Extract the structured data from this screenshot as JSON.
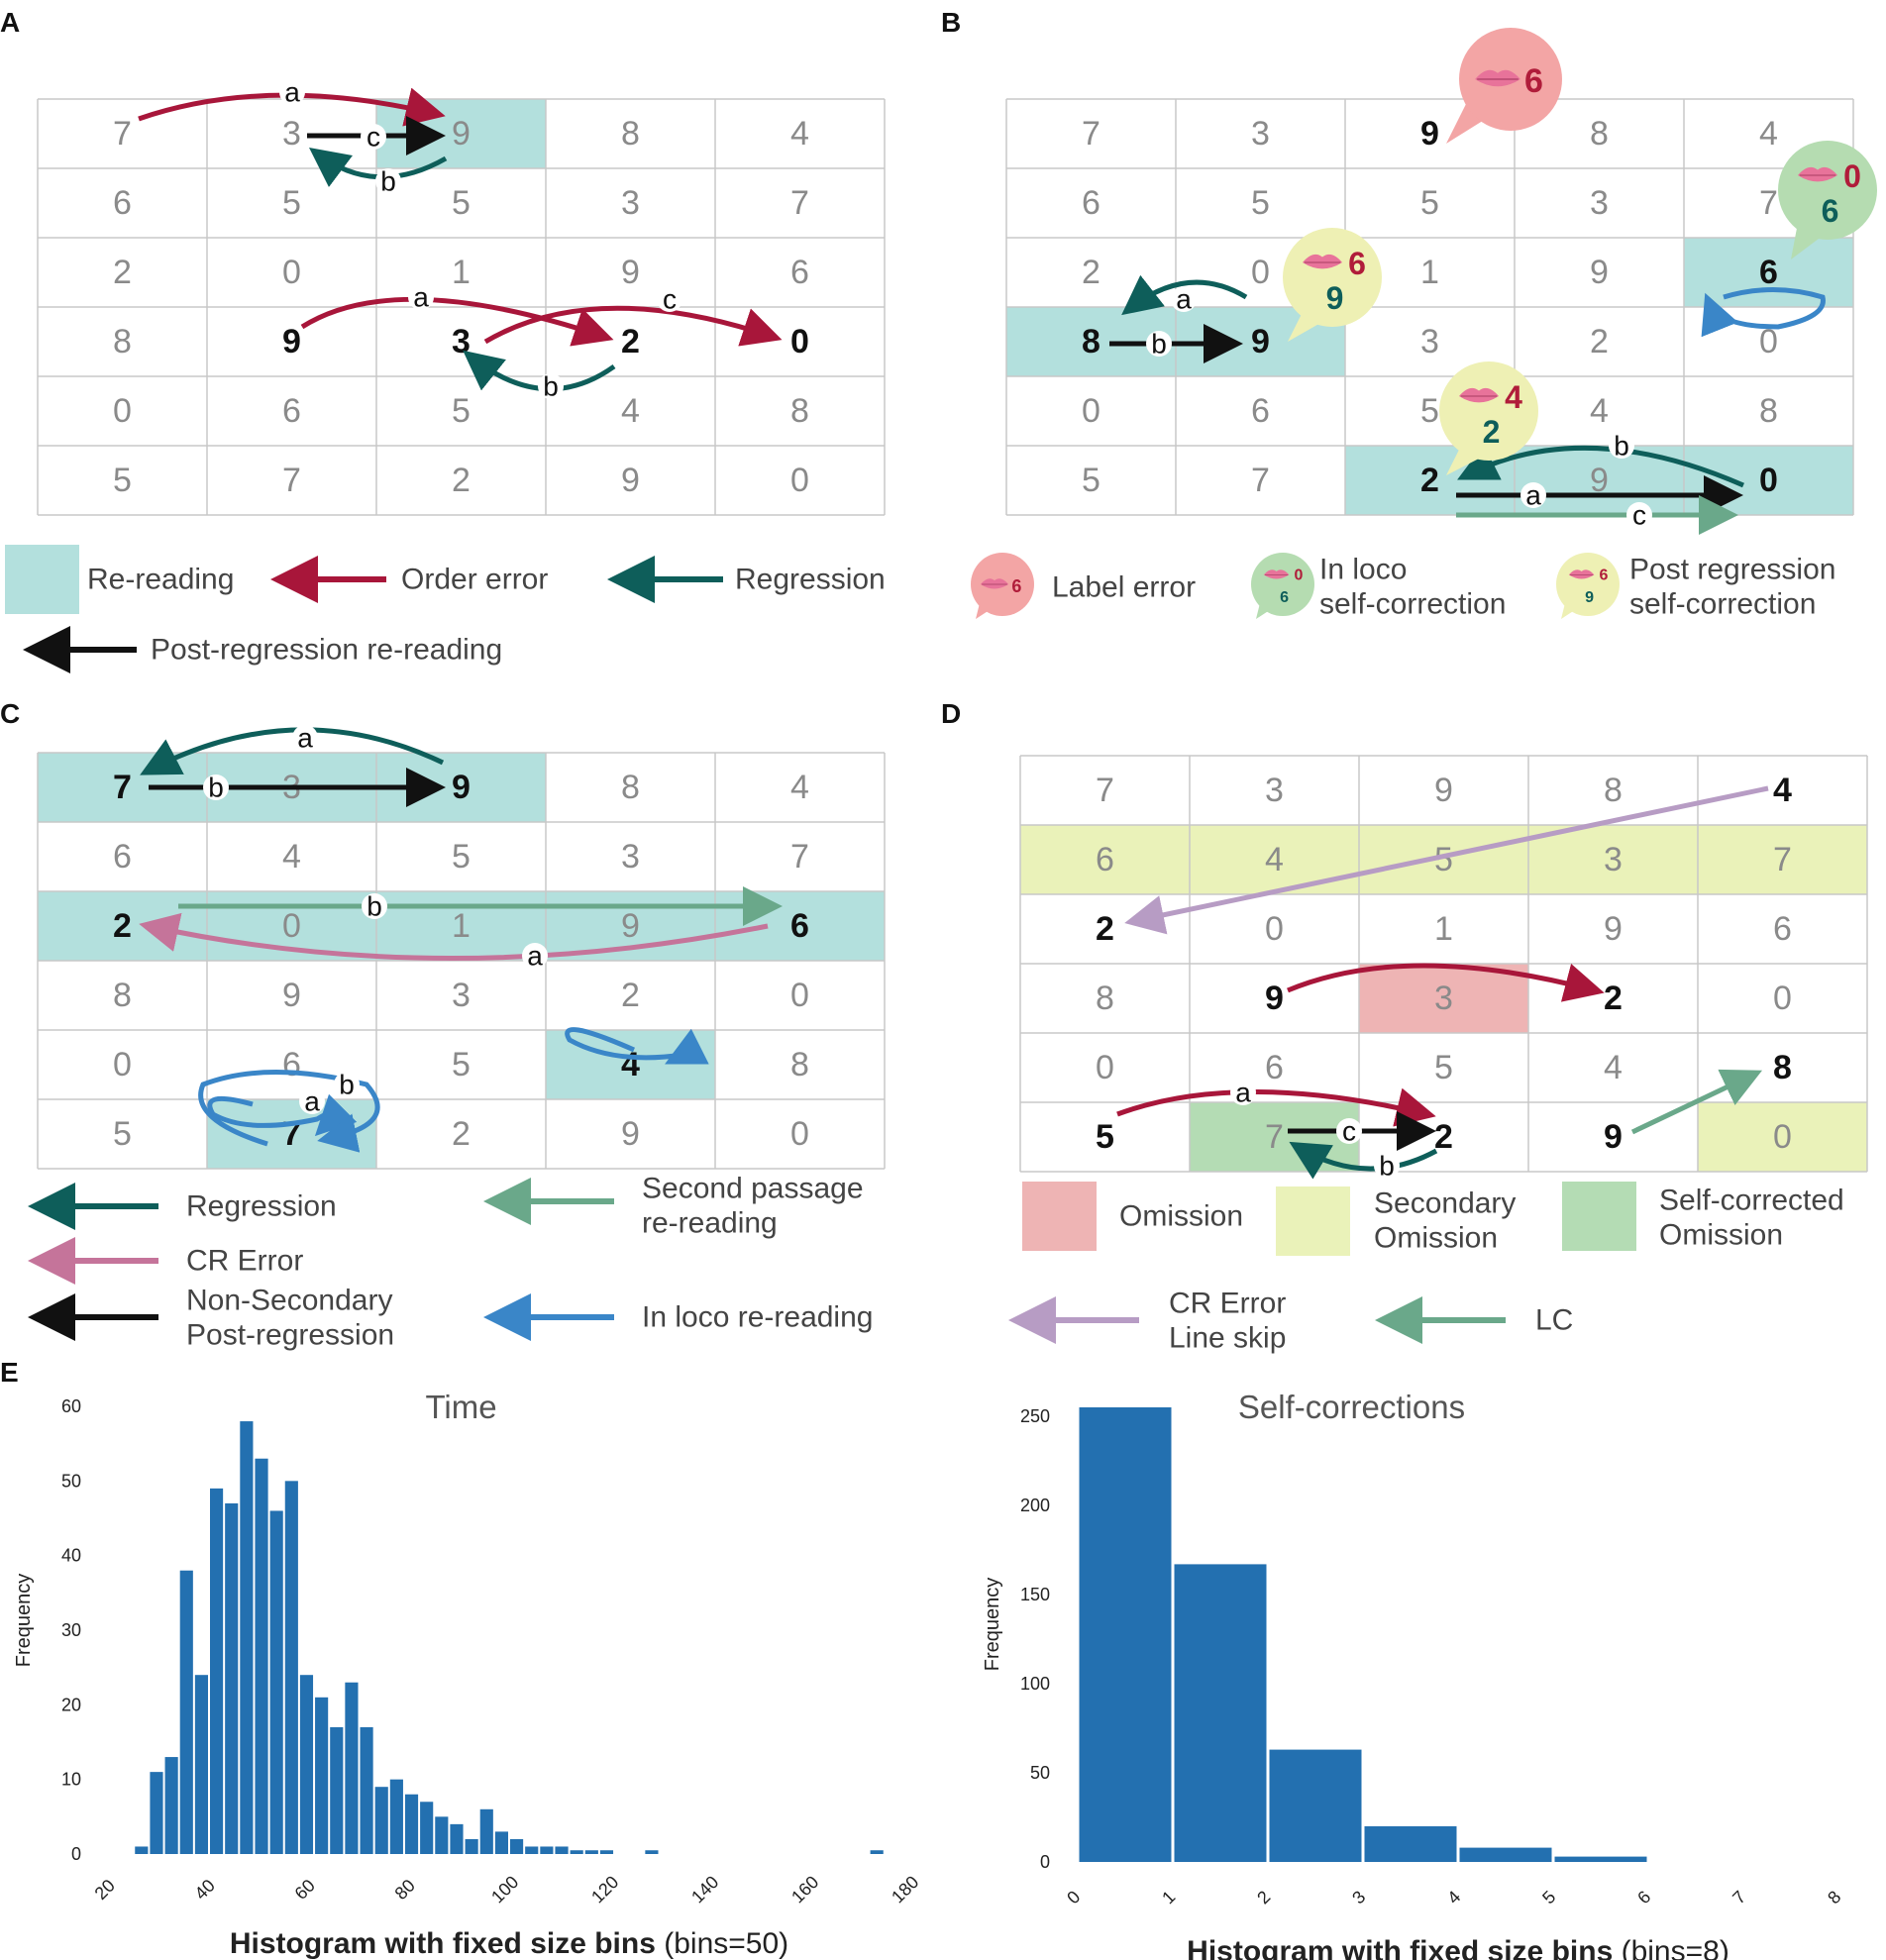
{
  "panels": {
    "A": {
      "label": "A",
      "grid": [
        [
          "7",
          "3",
          "9",
          "8",
          "4"
        ],
        [
          "6",
          "5",
          "5",
          "3",
          "7"
        ],
        [
          "2",
          "0",
          "1",
          "9",
          "6"
        ],
        [
          "8",
          "9",
          "3",
          "2",
          "0"
        ],
        [
          "0",
          "6",
          "5",
          "4",
          "8"
        ],
        [
          "5",
          "7",
          "2",
          "9",
          "0"
        ]
      ],
      "bold": [
        [
          3,
          1
        ],
        [
          3,
          2
        ],
        [
          3,
          3
        ],
        [
          3,
          4
        ]
      ],
      "highlights": [
        {
          "r": 0,
          "c": 2,
          "color": "#b3e0dd"
        }
      ],
      "legend": {
        "rereading": "Re-reading",
        "order_error": "Order error",
        "regression": "Regression",
        "post_regression": "Post-regression re-reading"
      }
    },
    "B": {
      "label": "B",
      "grid": [
        [
          "7",
          "3",
          "9",
          "8",
          "4"
        ],
        [
          "6",
          "5",
          "5",
          "3",
          "7"
        ],
        [
          "2",
          "0",
          "1",
          "9",
          "6"
        ],
        [
          "8",
          "9",
          "3",
          "2",
          "0"
        ],
        [
          "0",
          "6",
          "5",
          "4",
          "8"
        ],
        [
          "5",
          "7",
          "2",
          "9",
          "0"
        ]
      ],
      "bold": [
        [
          0,
          2
        ],
        [
          2,
          4
        ],
        [
          3,
          0
        ],
        [
          3,
          1
        ],
        [
          5,
          2
        ],
        [
          5,
          4
        ]
      ],
      "highlights": [
        {
          "r": 3,
          "c": 0,
          "color": "#b3e0dd"
        },
        {
          "r": 3,
          "c": 1,
          "color": "#b3e0dd"
        },
        {
          "r": 2,
          "c": 4,
          "color": "#b3e0dd"
        },
        {
          "r": 5,
          "c": 2,
          "color": "#b3e0dd"
        },
        {
          "r": 5,
          "c": 3,
          "color": "#b3e0dd"
        },
        {
          "r": 5,
          "c": 4,
          "color": "#b3e0dd"
        }
      ],
      "bubbles": {
        "label_error": "6",
        "in_loco_top": "0",
        "in_loco_bottom": "6",
        "post_reg_top": "6",
        "post_reg_bottom": "9",
        "mid_top": "4",
        "mid_bottom": "2"
      },
      "legend": {
        "label_error": "Label error",
        "in_loco_1": "In loco",
        "in_loco_2": "self-correction",
        "post_reg_1": "Post regression",
        "post_reg_2": "self-correction",
        "icon_le": "6",
        "icon_il_top": "0",
        "icon_il_bottom": "6",
        "icon_pr_top": "6",
        "icon_pr_bottom": "9"
      }
    },
    "C": {
      "label": "C",
      "grid": [
        [
          "7",
          "3",
          "9",
          "8",
          "4"
        ],
        [
          "6",
          "4",
          "5",
          "3",
          "7"
        ],
        [
          "2",
          "0",
          "1",
          "9",
          "6"
        ],
        [
          "8",
          "9",
          "3",
          "2",
          "0"
        ],
        [
          "0",
          "6",
          "5",
          "4",
          "8"
        ],
        [
          "5",
          "7",
          "2",
          "9",
          "0"
        ]
      ],
      "bold": [
        [
          0,
          0
        ],
        [
          0,
          2
        ],
        [
          2,
          0
        ],
        [
          2,
          4
        ],
        [
          4,
          3
        ],
        [
          5,
          1
        ]
      ],
      "highlights": [
        {
          "r": 0,
          "c": 0,
          "color": "#b3e0dd"
        },
        {
          "r": 0,
          "c": 1,
          "color": "#b3e0dd"
        },
        {
          "r": 0,
          "c": 2,
          "color": "#b3e0dd"
        },
        {
          "r": 2,
          "c": 0,
          "color": "#b3e0dd"
        },
        {
          "r": 2,
          "c": 1,
          "color": "#b3e0dd"
        },
        {
          "r": 2,
          "c": 2,
          "color": "#b3e0dd"
        },
        {
          "r": 2,
          "c": 3,
          "color": "#b3e0dd"
        },
        {
          "r": 2,
          "c": 4,
          "color": "#b3e0dd"
        },
        {
          "r": 4,
          "c": 3,
          "color": "#b3e0dd"
        },
        {
          "r": 5,
          "c": 1,
          "color": "#b3e0dd"
        }
      ],
      "legend": {
        "regression": "Regression",
        "second_passage_1": "Second passage",
        "second_passage_2": "re-reading",
        "cr_error": "CR Error",
        "non_secondary_1": "Non-Secondary",
        "non_secondary_2": "Post-regression",
        "in_loco": "In loco re-reading"
      }
    },
    "D": {
      "label": "D",
      "grid": [
        [
          "7",
          "3",
          "9",
          "8",
          "4"
        ],
        [
          "6",
          "4",
          "5",
          "3",
          "7"
        ],
        [
          "2",
          "0",
          "1",
          "9",
          "6"
        ],
        [
          "8",
          "9",
          "3",
          "2",
          "0"
        ],
        [
          "0",
          "6",
          "5",
          "4",
          "8"
        ],
        [
          "5",
          "7",
          "2",
          "9",
          "0"
        ]
      ],
      "bold": [
        [
          0,
          4
        ],
        [
          2,
          0
        ],
        [
          3,
          1
        ],
        [
          3,
          3
        ],
        [
          4,
          4
        ],
        [
          5,
          0
        ],
        [
          5,
          2
        ],
        [
          5,
          3
        ]
      ],
      "highlights": [
        {
          "r": 1,
          "c": 0,
          "color": "#eaf2b9"
        },
        {
          "r": 1,
          "c": 1,
          "color": "#eaf2b9"
        },
        {
          "r": 1,
          "c": 2,
          "color": "#eaf2b9"
        },
        {
          "r": 1,
          "c": 3,
          "color": "#eaf2b9"
        },
        {
          "r": 1,
          "c": 4,
          "color": "#eaf2b9"
        },
        {
          "r": 3,
          "c": 2,
          "color": "#eeb4b4"
        },
        {
          "r": 5,
          "c": 1,
          "color": "#b4dcb4"
        },
        {
          "r": 5,
          "c": 4,
          "color": "#eaf2b9"
        }
      ],
      "legend": {
        "omission": "Omission",
        "secondary_1": "Secondary",
        "secondary_2": "Omission",
        "self_corr_1": "Self-corrected",
        "self_corr_2": "Omission",
        "cr_line_1": "CR Error",
        "cr_line_2": "Line skip",
        "lc": "LC"
      }
    },
    "E": {
      "label": "E"
    }
  },
  "arrow_labels": {
    "a": "a",
    "b": "b",
    "c": "c"
  },
  "colors": {
    "order_error": "#a8163a",
    "regression": "#0e5e5a",
    "post_regression": "#111111",
    "in_loco": "#3a86c8",
    "second_passage": "#6aa88a",
    "cr_error": "#c5749a",
    "line_skip": "#b79cc4",
    "lc": "#6aa88a",
    "bar": "#2370b0",
    "highlight": "#b3e0dd"
  },
  "chart_data": [
    {
      "type": "bar",
      "title": "Time",
      "xlabel_bold": "Histogram with fixed size bins",
      "xlabel_extra": "(bins=50)",
      "ylabel": "Frequency",
      "xlim": [
        20,
        180
      ],
      "ylim": [
        0,
        60
      ],
      "xticks": [
        20,
        40,
        60,
        80,
        100,
        120,
        140,
        160,
        180
      ],
      "yticks": [
        0,
        10,
        20,
        30,
        40,
        50,
        60
      ],
      "bin_width": 3.0,
      "bin_starts": [
        25,
        28,
        31,
        34,
        37,
        40,
        43,
        46,
        49,
        52,
        55,
        58,
        61,
        64,
        67,
        70,
        73,
        76,
        79,
        82,
        85,
        88,
        91,
        94,
        97,
        100,
        103,
        106,
        109,
        112,
        115,
        118,
        127,
        172
      ],
      "values": [
        1,
        11,
        13,
        38,
        24,
        49,
        47,
        58,
        53,
        46,
        50,
        24,
        21,
        17,
        23,
        17,
        9,
        10,
        8,
        7,
        5,
        4,
        2,
        6,
        3,
        2,
        1,
        1,
        1,
        0.5,
        0.5,
        0.5,
        0.5,
        0.5
      ]
    },
    {
      "type": "bar",
      "title": "Self-corrections",
      "xlabel_bold": "Histogram with fixed size bins",
      "xlabel_extra": "(bins=8)",
      "ylabel": "Frequency",
      "xlim": [
        0,
        8
      ],
      "ylim": [
        0,
        250
      ],
      "xticks": [
        0,
        1,
        2,
        3,
        4,
        5,
        6,
        7,
        8
      ],
      "yticks": [
        0,
        50,
        100,
        150,
        200,
        250
      ],
      "categories": [
        "0-1",
        "1-2",
        "2-3",
        "3-4",
        "4-5",
        "5-6"
      ],
      "values": [
        255,
        167,
        63,
        20,
        8,
        3
      ]
    }
  ]
}
